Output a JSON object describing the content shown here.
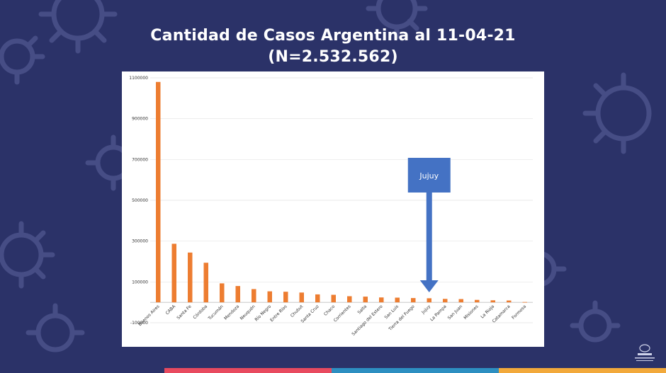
{
  "colors": {
    "background": "#2b3268",
    "bar": "#ed7d31",
    "annotation": "#4472c4",
    "stripe_1": "#e84a5f",
    "stripe_2": "#2d8fc1",
    "stripe_3": "#f2a93b"
  },
  "header": {
    "title_line_1": "Cantidad de Casos Argentina al 11-04-21",
    "title_line_2": "(N=2.532.562)"
  },
  "chart_data": {
    "type": "bar",
    "title": "Cantidad de Casos Argentina al 11-04-21 (N=2.532.562)",
    "xlabel": "",
    "ylabel": "",
    "ylim": [
      -100000,
      1100000
    ],
    "yticks": [
      {
        "value": 1100000,
        "label": "1100000"
      },
      {
        "value": 900000,
        "label": "900000"
      },
      {
        "value": 700000,
        "label": "700000"
      },
      {
        "value": 500000,
        "label": "500000"
      },
      {
        "value": 300000,
        "label": "300000"
      },
      {
        "value": 100000,
        "label": "100000"
      },
      {
        "value": -100000,
        "label": "-100000"
      }
    ],
    "grid": true,
    "categories": [
      "Buenos Aires",
      "CABA",
      "Santa Fe",
      "Córdoba",
      "Tucumán",
      "Mendoza",
      "Neuquén",
      "Río Negro",
      "Entre Ríos",
      "Chubut",
      "Santa Cruz",
      "Chaco",
      "Corrientes",
      "Salta",
      "Santiago del Estero",
      "San Luis",
      "Tierra del Fuego",
      "Jujuy",
      "La Pampa",
      "San Juan",
      "Misiones",
      "La Rioja",
      "Catamarca",
      "Formosa"
    ],
    "values": [
      1080000,
      287000,
      244000,
      194000,
      93000,
      80000,
      65000,
      54000,
      52000,
      48000,
      39000,
      37000,
      30000,
      28000,
      24000,
      23000,
      21000,
      20000,
      17000,
      16000,
      12000,
      10000,
      9000,
      1500
    ],
    "annotation": {
      "label": "Jujuy",
      "target_category": "Jujuy"
    }
  }
}
